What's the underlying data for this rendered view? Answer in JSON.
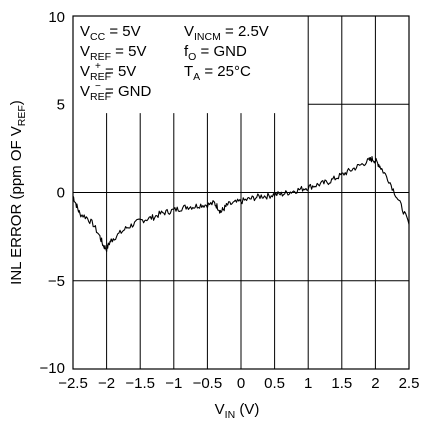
{
  "chart_data": {
    "type": "line",
    "title": "",
    "xlabel": {
      "main": "V",
      "sub": "IN",
      "suffix": " (V)"
    },
    "ylabel": {
      "prefix": "INL ERROR (ppm OF V",
      "sub": "REF",
      "suffix": ")"
    },
    "xlim": [
      -2.5,
      2.5
    ],
    "ylim": [
      -10,
      10
    ],
    "x_ticks": [
      -2.5,
      -2,
      -1.5,
      -1,
      -0.5,
      0,
      0.5,
      1,
      1.5,
      2,
      2.5
    ],
    "x_tick_labels": [
      "−2.5",
      "−2",
      "−1.5",
      "−1",
      "−0.5",
      "0",
      "0.5",
      "1",
      "1.5",
      "2",
      "2.5"
    ],
    "y_ticks": [
      -10,
      -5,
      0,
      5,
      10
    ],
    "y_tick_labels": [
      "−10",
      "−5",
      "0",
      "5",
      "10"
    ],
    "grid": true,
    "series": [
      {
        "x": [
          -2.5,
          -2.45,
          -2.4,
          -2.3,
          -2.2,
          -2.1,
          -2.05,
          -2.0,
          -1.95,
          -1.9,
          -1.8,
          -1.7,
          -1.6,
          -1.5,
          -1.4,
          -1.3,
          -1.2,
          -1.1,
          -1.0,
          -0.9,
          -0.8,
          -0.7,
          -0.6,
          -0.5,
          -0.4,
          -0.35,
          -0.3,
          -0.25,
          -0.2,
          -0.1,
          0.0,
          0.1,
          0.2,
          0.3,
          0.4,
          0.5,
          0.6,
          0.7,
          0.8,
          0.9,
          1.0,
          1.1,
          1.2,
          1.3,
          1.4,
          1.5,
          1.6,
          1.7,
          1.8,
          1.9,
          1.95,
          2.0,
          2.05,
          2.1,
          2.2,
          2.3,
          2.4,
          2.5
        ],
        "y": [
          -0.2,
          -0.7,
          -1.2,
          -1.4,
          -1.8,
          -2.5,
          -3.0,
          -3.2,
          -2.8,
          -2.6,
          -2.3,
          -2.0,
          -1.8,
          -1.6,
          -1.5,
          -1.4,
          -1.2,
          -1.1,
          -1.0,
          -0.9,
          -0.8,
          -0.8,
          -0.7,
          -0.7,
          -0.6,
          -0.8,
          -1.1,
          -0.9,
          -0.7,
          -0.6,
          -0.5,
          -0.4,
          -0.3,
          -0.2,
          -0.2,
          -0.1,
          -0.1,
          0.0,
          0.1,
          0.2,
          0.3,
          0.4,
          0.5,
          0.6,
          0.8,
          1.0,
          1.2,
          1.4,
          1.6,
          1.8,
          1.9,
          1.8,
          1.6,
          1.3,
          0.7,
          -0.1,
          -0.9,
          -1.8
        ]
      }
    ],
    "annotations": {
      "col1": [
        {
          "main": "V",
          "sub": "CC",
          "sup": "",
          "rest": " = 5V"
        },
        {
          "main": "V",
          "sub": "REF",
          "sup": "",
          "rest": " = 5V"
        },
        {
          "main": "V",
          "sub": "REF",
          "sup": "+",
          "rest": " = 5V"
        },
        {
          "main": "V",
          "sub": "REF",
          "sup": "−",
          "rest": " = GND"
        }
      ],
      "col2": [
        {
          "main": "V",
          "sub": "INCM",
          "sup": "",
          "rest": " = 2.5V"
        },
        {
          "main": "f",
          "sub": "O",
          "sup": "",
          "rest": " = GND"
        },
        {
          "main": "T",
          "sub": "A",
          "sup": "",
          "rest": " = 25°C"
        }
      ]
    }
  }
}
